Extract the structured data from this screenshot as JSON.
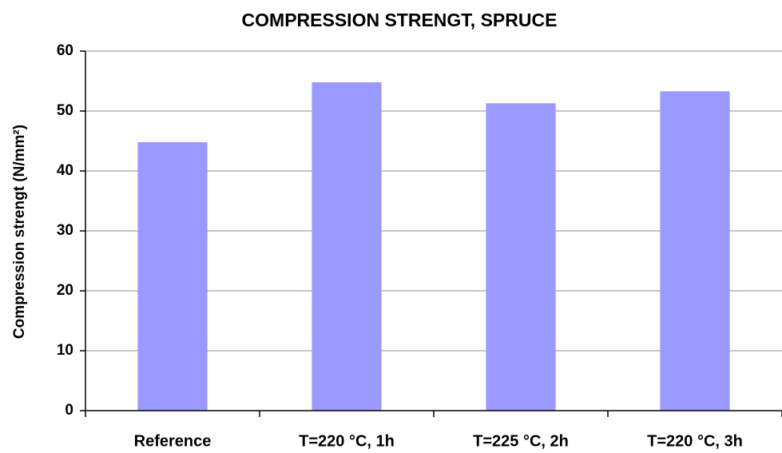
{
  "chart_data": {
    "type": "bar",
    "title": "COMPRESSION STRENGT, SPRUCE",
    "y_label": "Compression strengt (N/mm²)",
    "categories": [
      "Reference",
      "T=220 °C, 1h",
      "T=225 °C, 2h",
      "T=220 °C, 3h"
    ],
    "values": [
      44.8,
      54.8,
      51.3,
      53.3
    ],
    "color": "#9999ff",
    "ylim": [
      0,
      60
    ],
    "yticks": [
      0,
      10,
      20,
      30,
      40,
      50,
      60
    ],
    "grid": true
  }
}
